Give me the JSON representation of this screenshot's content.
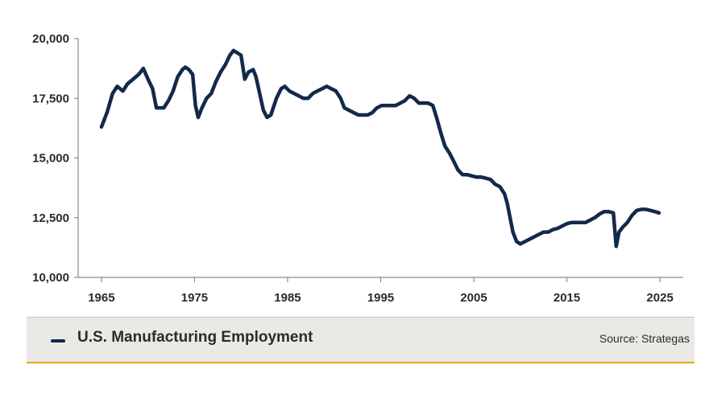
{
  "chart_data": {
    "type": "line",
    "title": "",
    "xlabel": "",
    "ylabel": "",
    "xlim": [
      1962.5,
      2027.5
    ],
    "ylim": [
      10000,
      20000
    ],
    "x_ticks": [
      "1965",
      "1975",
      "1985",
      "1995",
      "2005",
      "2015",
      "2025"
    ],
    "y_ticks": [
      "10,000",
      "12,500",
      "15,000",
      "17,500",
      "20,000"
    ],
    "grid": false,
    "line_color": "#13294b",
    "series": [
      {
        "name": "U.S. Manufacturing Employment",
        "points": [
          [
            1965.0,
            16300
          ],
          [
            1965.6,
            16900
          ],
          [
            1966.2,
            17700
          ],
          [
            1966.7,
            18000
          ],
          [
            1967.3,
            17800
          ],
          [
            1967.8,
            18100
          ],
          [
            1968.4,
            18300
          ],
          [
            1969.0,
            18500
          ],
          [
            1969.5,
            18750
          ],
          [
            1970.0,
            18300
          ],
          [
            1970.5,
            17900
          ],
          [
            1970.9,
            17100
          ],
          [
            1971.3,
            17100
          ],
          [
            1971.7,
            17100
          ],
          [
            1972.2,
            17400
          ],
          [
            1972.7,
            17800
          ],
          [
            1973.2,
            18400
          ],
          [
            1973.7,
            18700
          ],
          [
            1974.0,
            18800
          ],
          [
            1974.4,
            18700
          ],
          [
            1974.8,
            18500
          ],
          [
            1975.1,
            17200
          ],
          [
            1975.4,
            16700
          ],
          [
            1975.8,
            17100
          ],
          [
            1976.3,
            17500
          ],
          [
            1976.8,
            17700
          ],
          [
            1977.3,
            18200
          ],
          [
            1977.8,
            18600
          ],
          [
            1978.3,
            18900
          ],
          [
            1978.8,
            19300
          ],
          [
            1979.2,
            19500
          ],
          [
            1979.6,
            19400
          ],
          [
            1980.0,
            19300
          ],
          [
            1980.4,
            18300
          ],
          [
            1980.8,
            18600
          ],
          [
            1981.3,
            18700
          ],
          [
            1981.6,
            18400
          ],
          [
            1982.0,
            17700
          ],
          [
            1982.4,
            17000
          ],
          [
            1982.8,
            16700
          ],
          [
            1983.2,
            16800
          ],
          [
            1983.8,
            17500
          ],
          [
            1984.3,
            17900
          ],
          [
            1984.7,
            18000
          ],
          [
            1985.2,
            17800
          ],
          [
            1985.7,
            17700
          ],
          [
            1986.2,
            17600
          ],
          [
            1986.7,
            17500
          ],
          [
            1987.2,
            17500
          ],
          [
            1987.7,
            17700
          ],
          [
            1988.2,
            17800
          ],
          [
            1988.7,
            17900
          ],
          [
            1989.2,
            18000
          ],
          [
            1989.7,
            17900
          ],
          [
            1990.2,
            17800
          ],
          [
            1990.7,
            17500
          ],
          [
            1991.1,
            17100
          ],
          [
            1991.6,
            17000
          ],
          [
            1992.1,
            16900
          ],
          [
            1992.6,
            16800
          ],
          [
            1993.1,
            16800
          ],
          [
            1993.6,
            16800
          ],
          [
            1994.1,
            16900
          ],
          [
            1994.6,
            17100
          ],
          [
            1995.1,
            17200
          ],
          [
            1995.6,
            17200
          ],
          [
            1996.1,
            17200
          ],
          [
            1996.6,
            17200
          ],
          [
            1997.1,
            17300
          ],
          [
            1997.6,
            17400
          ],
          [
            1998.1,
            17600
          ],
          [
            1998.6,
            17500
          ],
          [
            1999.1,
            17300
          ],
          [
            1999.6,
            17300
          ],
          [
            2000.1,
            17300
          ],
          [
            2000.6,
            17200
          ],
          [
            2001.0,
            16700
          ],
          [
            2001.5,
            16000
          ],
          [
            2001.9,
            15500
          ],
          [
            2002.4,
            15200
          ],
          [
            2002.8,
            14900
          ],
          [
            2003.3,
            14500
          ],
          [
            2003.8,
            14300
          ],
          [
            2004.3,
            14300
          ],
          [
            2004.8,
            14250
          ],
          [
            2005.3,
            14200
          ],
          [
            2005.8,
            14200
          ],
          [
            2006.3,
            14150
          ],
          [
            2006.8,
            14100
          ],
          [
            2007.3,
            13900
          ],
          [
            2007.8,
            13800
          ],
          [
            2008.3,
            13500
          ],
          [
            2008.6,
            13100
          ],
          [
            2008.9,
            12500
          ],
          [
            2009.2,
            11900
          ],
          [
            2009.6,
            11500
          ],
          [
            2010.0,
            11400
          ],
          [
            2010.5,
            11500
          ],
          [
            2011.0,
            11600
          ],
          [
            2011.5,
            11700
          ],
          [
            2012.0,
            11800
          ],
          [
            2012.5,
            11900
          ],
          [
            2013.0,
            11900
          ],
          [
            2013.5,
            12000
          ],
          [
            2014.0,
            12050
          ],
          [
            2014.5,
            12150
          ],
          [
            2015.0,
            12250
          ],
          [
            2015.5,
            12300
          ],
          [
            2016.0,
            12300
          ],
          [
            2016.5,
            12300
          ],
          [
            2017.0,
            12300
          ],
          [
            2017.5,
            12400
          ],
          [
            2018.0,
            12500
          ],
          [
            2018.5,
            12650
          ],
          [
            2019.0,
            12750
          ],
          [
            2019.5,
            12750
          ],
          [
            2020.0,
            12700
          ],
          [
            2020.3,
            11300
          ],
          [
            2020.6,
            11900
          ],
          [
            2021.0,
            12100
          ],
          [
            2021.5,
            12300
          ],
          [
            2022.0,
            12600
          ],
          [
            2022.5,
            12800
          ],
          [
            2023.0,
            12850
          ],
          [
            2023.5,
            12850
          ],
          [
            2024.0,
            12800
          ],
          [
            2024.5,
            12750
          ],
          [
            2024.9,
            12700
          ]
        ]
      }
    ]
  },
  "legend": {
    "label": "U.S. Manufacturing Employment",
    "source": "Source: Strategas",
    "band_color": "#ebe9e6",
    "accent_color": "#e4a81a"
  }
}
